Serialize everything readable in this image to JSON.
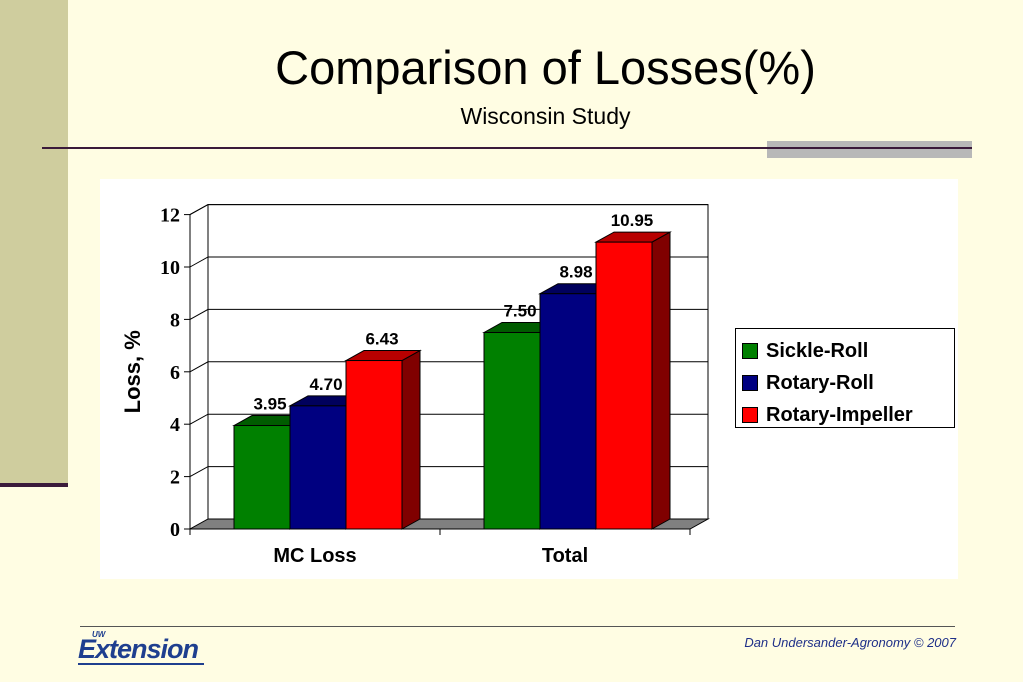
{
  "slide": {
    "title": "Comparison of Losses(%)",
    "subtitle": "Wisconsin Study",
    "credit": "Dan  Undersander-Agronomy © 2007",
    "logo": {
      "superscript": "UW",
      "text": "Extension"
    }
  },
  "chart_data": {
    "type": "bar",
    "categories": [
      "MC Loss",
      "Total"
    ],
    "series": [
      {
        "name": "Sickle-Roll",
        "values": [
          3.95,
          7.5
        ],
        "labels": [
          "3.95",
          "7.50"
        ],
        "color": "#008000"
      },
      {
        "name": "Rotary-Roll",
        "values": [
          4.7,
          8.98
        ],
        "labels": [
          "4.70",
          "8.98"
        ],
        "color": "#000080"
      },
      {
        "name": "Rotary-Impeller",
        "values": [
          6.43,
          10.95
        ],
        "labels": [
          "6.43",
          "10.95"
        ],
        "color": "#ff0000"
      }
    ],
    "title": "",
    "xlabel": "",
    "ylabel": "Loss, %",
    "ylim": [
      0,
      12
    ],
    "yticks": [
      0,
      2,
      4,
      6,
      8,
      10,
      12
    ],
    "grid": true,
    "legend_position": "right",
    "style": "3d-clustered-column"
  }
}
